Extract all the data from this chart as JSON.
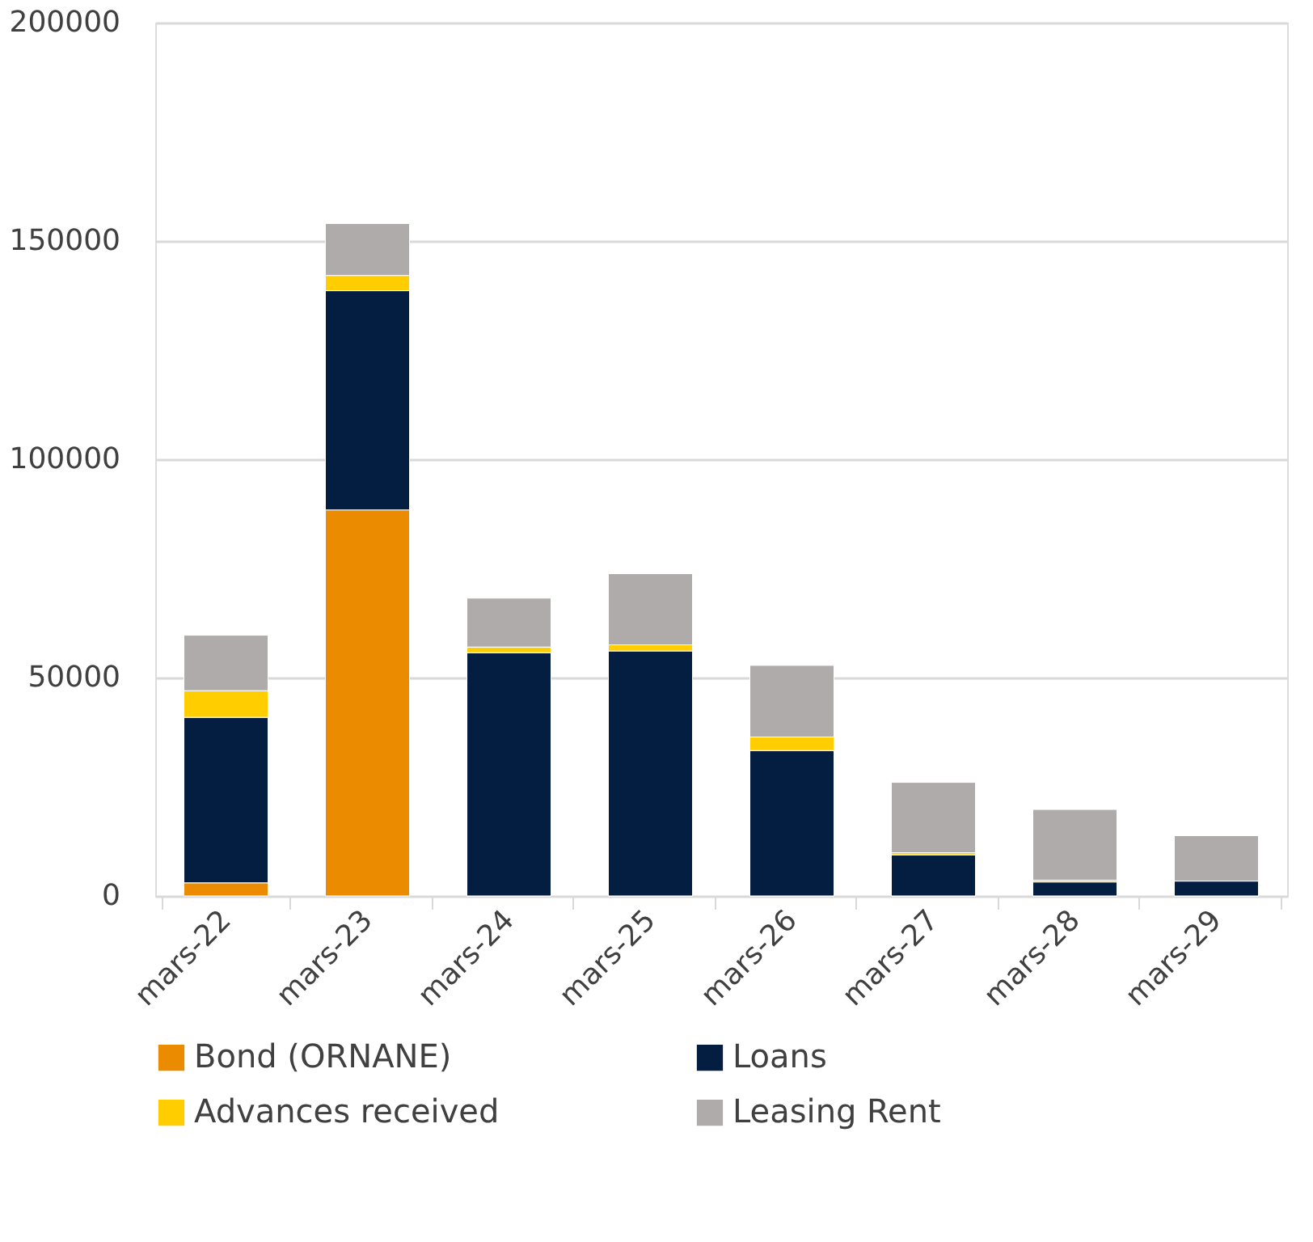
{
  "chart_data": {
    "type": "bar",
    "stacked": true,
    "categories": [
      "mars-22",
      "mars-23",
      "mars-24",
      "mars-25",
      "mars-26",
      "mars-27",
      "mars-28",
      "mars-29"
    ],
    "series": [
      {
        "name": "Bond (ORNANE)",
        "color": "#eb8c00",
        "values": [
          3000,
          88400,
          0,
          0,
          0,
          0,
          0,
          0
        ]
      },
      {
        "name": "Loans",
        "color": "#041e42",
        "values": [
          37900,
          50200,
          55700,
          56100,
          33300,
          9400,
          3200,
          3400
        ]
      },
      {
        "name": "Advances received",
        "color": "#ffcd00",
        "values": [
          6100,
          3500,
          1300,
          1400,
          3100,
          500,
          400,
          null
        ]
      },
      {
        "name": "Leasing Rent",
        "color": "#afabab",
        "values": [
          12700,
          11900,
          11200,
          16300,
          16400,
          16100,
          16200,
          10400
        ]
      }
    ],
    "ylim": [
      0,
      200000
    ],
    "yticks": [
      0,
      50000,
      100000,
      150000,
      200000
    ],
    "grid": "y",
    "legend": "bottom"
  }
}
